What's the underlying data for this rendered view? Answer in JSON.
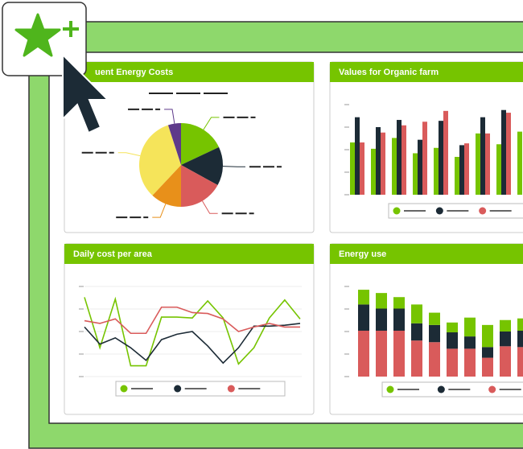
{
  "panels": [
    {
      "chart_data": {
        "type": "pie",
        "title": "uent Energy Costs",
        "colors": [
          "#76c400",
          "#1c2b36",
          "#d95b5b",
          "#e8901a",
          "#f5e45a",
          "#5e3a8a"
        ],
        "values": [
          18,
          15,
          17,
          12,
          33,
          5
        ]
      }
    },
    {
      "chart_data": {
        "type": "bar",
        "title": "Values for Organic farm",
        "ylim": [
          0,
          100
        ],
        "series": [
          {
            "color": "#76c400",
            "values": [
              58,
              51,
              63,
              46,
              52,
              42,
              68,
              56,
              70
            ]
          },
          {
            "color": "#1c2b36",
            "values": [
              86,
              75,
              83,
              61,
              82,
              55,
              86,
              94,
              null
            ]
          },
          {
            "color": "#d95b5b",
            "values": [
              58,
              69,
              77,
              81,
              93,
              57,
              68,
              91,
              null
            ]
          }
        ]
      }
    },
    {
      "chart_data": {
        "type": "line",
        "title": "Daily cost per area",
        "ylim": [
          0,
          100
        ],
        "series": [
          {
            "color": "#76c400",
            "values": [
              88,
              32,
              86,
              12,
              12,
              66,
              66,
              65,
              84,
              65,
              14,
              32,
              65,
              85,
              64
            ]
          },
          {
            "color": "#1c2b36",
            "values": [
              55,
              36,
              43,
              32,
              18,
              41,
              47,
              50,
              34,
              15,
              32,
              56,
              56,
              57,
              59
            ]
          },
          {
            "color": "#d95b5b",
            "values": [
              62,
              59,
              64,
              48,
              48,
              77,
              77,
              71,
              70,
              64,
              50,
              55,
              59,
              55,
              55
            ]
          }
        ]
      }
    },
    {
      "chart_data": {
        "type": "stacked_bar",
        "title": "Energy use",
        "ylim": [
          0,
          110
        ],
        "series": [
          {
            "color": "#d95b5b",
            "values": [
              56,
              56,
              56,
              44,
              42,
              34,
              34,
              23,
              37,
              36
            ]
          },
          {
            "color": "#1c2b36",
            "values": [
              32,
              27,
              27,
              21,
              21,
              20,
              15,
              13,
              18,
              20
            ]
          },
          {
            "color": "#76c400",
            "values": [
              18,
              19,
              14,
              23,
              15,
              12,
              23,
              27,
              14,
              15
            ]
          }
        ]
      }
    }
  ]
}
